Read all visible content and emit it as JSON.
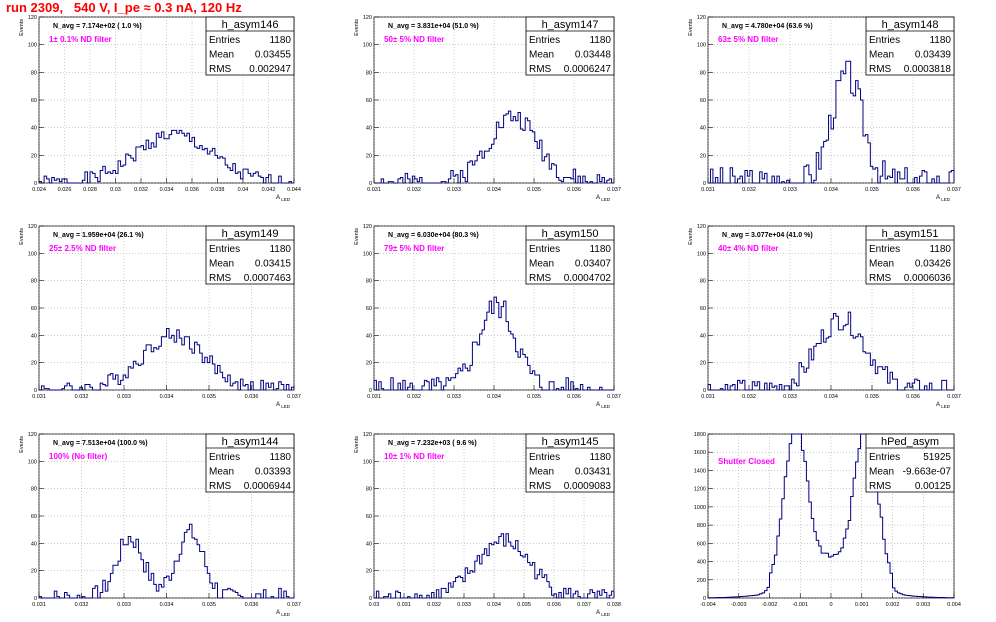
{
  "run_title": "run 2309,   540 V, I_pe ≈ 0.3 nA, 120 Hz",
  "colors": {
    "hist_line": "#000080",
    "annot": "#ff00ff",
    "title": "#ff0000",
    "grid": "#999999"
  },
  "chart_data": [
    {
      "type": "bar",
      "name": "h_asym146",
      "stats": [
        [
          "Entries",
          "1180"
        ],
        [
          "Mean",
          "0.03455"
        ],
        [
          "RMS",
          "0.002947"
        ]
      ],
      "navg": "N_avg = 7.174e+02 ( 1.0 %)",
      "label": "1± 0.1% ND filter",
      "ylabel": "Events",
      "xlabel": "A_LED",
      "xlim": [
        0.024,
        0.044
      ],
      "ylim": [
        0,
        120
      ],
      "xticks": [
        0.024,
        0.026,
        0.028,
        0.03,
        0.032,
        0.034,
        0.036,
        0.038,
        0.04,
        0.042,
        0.044
      ],
      "yticks": [
        0,
        20,
        40,
        60,
        80,
        100,
        120
      ],
      "mean": 0.03455,
      "sigma": 0.00295,
      "peak": 35,
      "seed": 1
    },
    {
      "type": "bar",
      "name": "h_asym147",
      "stats": [
        [
          "Entries",
          "1180"
        ],
        [
          "Mean",
          "0.03448"
        ],
        [
          "RMS",
          "0.0006247"
        ]
      ],
      "navg": "N_avg = 3.831e+04 (51.0 %)",
      "label": "50± 5% ND filter",
      "ylabel": "Events",
      "xlabel": "A_LED",
      "xlim": [
        0.031,
        0.037
      ],
      "ylim": [
        0,
        120
      ],
      "xticks": [
        0.031,
        0.032,
        0.033,
        0.034,
        0.035,
        0.036,
        0.037
      ],
      "yticks": [
        0,
        20,
        40,
        60,
        80,
        100,
        120
      ],
      "mean": 0.03448,
      "sigma": 0.000625,
      "peak": 48,
      "seed": 2
    },
    {
      "type": "bar",
      "name": "h_asym148",
      "stats": [
        [
          "Entries",
          "1180"
        ],
        [
          "Mean",
          "0.03439"
        ],
        [
          "RMS",
          "0.0003818"
        ]
      ],
      "navg": "N_avg = 4.780e+04 (63.6 %)",
      "label": "63± 5% ND filter",
      "ylabel": "Events",
      "xlabel": "A_LED",
      "xlim": [
        0.031,
        0.037
      ],
      "ylim": [
        0,
        120
      ],
      "xticks": [
        0.031,
        0.032,
        0.033,
        0.034,
        0.035,
        0.036,
        0.037
      ],
      "yticks": [
        0,
        20,
        40,
        60,
        80,
        100,
        120
      ],
      "mean": 0.03439,
      "sigma": 0.00038,
      "peak": 78,
      "seed": 3
    },
    {
      "type": "bar",
      "name": "h_asym149",
      "stats": [
        [
          "Entries",
          "1180"
        ],
        [
          "Mean",
          "0.03415"
        ],
        [
          "RMS",
          "0.0007463"
        ]
      ],
      "navg": "N_avg = 1.959e+04 (26.1 %)",
      "label": "25± 2.5% ND filter",
      "ylabel": "Events",
      "xlabel": "A_LED",
      "xlim": [
        0.031,
        0.037
      ],
      "ylim": [
        0,
        120
      ],
      "xticks": [
        0.031,
        0.032,
        0.033,
        0.034,
        0.035,
        0.036,
        0.037
      ],
      "yticks": [
        0,
        20,
        40,
        60,
        80,
        100,
        120
      ],
      "mean": 0.03415,
      "sigma": 0.00075,
      "peak": 40,
      "seed": 4
    },
    {
      "type": "bar",
      "name": "h_asym150",
      "stats": [
        [
          "Entries",
          "1180"
        ],
        [
          "Mean",
          "0.03407"
        ],
        [
          "RMS",
          "0.0004702"
        ]
      ],
      "navg": "N_avg = 6.030e+04 (80.3 %)",
      "label": "79± 5% ND filter",
      "ylabel": "Events",
      "xlabel": "A_LED",
      "xlim": [
        0.031,
        0.037
      ],
      "ylim": [
        0,
        120
      ],
      "xticks": [
        0.031,
        0.032,
        0.033,
        0.034,
        0.035,
        0.036,
        0.037
      ],
      "yticks": [
        0,
        20,
        40,
        60,
        80,
        100,
        120
      ],
      "mean": 0.03407,
      "sigma": 0.00047,
      "peak": 62,
      "seed": 5
    },
    {
      "type": "bar",
      "name": "h_asym151",
      "stats": [
        [
          "Entries",
          "1180"
        ],
        [
          "Mean",
          "0.03426"
        ],
        [
          "RMS",
          "0.0006036"
        ]
      ],
      "navg": "N_avg = 3.077e+04 (41.0 %)",
      "label": "40± 4% ND filter",
      "ylabel": "Events",
      "xlabel": "A_LED",
      "xlim": [
        0.031,
        0.037
      ],
      "ylim": [
        0,
        120
      ],
      "xticks": [
        0.031,
        0.032,
        0.033,
        0.034,
        0.035,
        0.036,
        0.037
      ],
      "yticks": [
        0,
        20,
        40,
        60,
        80,
        100,
        120
      ],
      "mean": 0.03426,
      "sigma": 0.0006,
      "peak": 52,
      "seed": 6
    },
    {
      "type": "bar",
      "name": "h_asym144",
      "stats": [
        [
          "Entries",
          "1180"
        ],
        [
          "Mean",
          "0.03393"
        ],
        [
          "RMS",
          "0.0006944"
        ]
      ],
      "navg": "N_avg = 7.513e+04 (100.0 %)",
      "label": "100% (No filter)",
      "ylabel": "Events",
      "xlabel": "A_LED",
      "xlim": [
        0.031,
        0.037
      ],
      "ylim": [
        0,
        120
      ],
      "xticks": [
        0.031,
        0.032,
        0.033,
        0.034,
        0.035,
        0.036,
        0.037
      ],
      "yticks": [
        0,
        20,
        40,
        60,
        80,
        100,
        120
      ],
      "bimodal": [
        [
          0.03315,
          0.00032,
          44
        ],
        [
          0.03455,
          0.00032,
          48
        ]
      ],
      "seed": 7
    },
    {
      "type": "bar",
      "name": "h_asym145",
      "stats": [
        [
          "Entries",
          "1180"
        ],
        [
          "Mean",
          "0.03431"
        ],
        [
          "RMS",
          "0.0009083"
        ]
      ],
      "navg": "N_avg = 7.232e+03 ( 9.6 %)",
      "label": "10± 1% ND filter",
      "ylabel": "Events",
      "xlabel": "A_LED",
      "xlim": [
        0.03,
        0.038
      ],
      "ylim": [
        0,
        120
      ],
      "xticks": [
        0.03,
        0.031,
        0.032,
        0.033,
        0.034,
        0.035,
        0.036,
        0.037,
        0.038
      ],
      "yticks": [
        0,
        20,
        40,
        60,
        80,
        100,
        120
      ],
      "mean": 0.03431,
      "sigma": 0.0009,
      "peak": 42,
      "seed": 8
    },
    {
      "type": "bar",
      "name": "hPed_asym",
      "stats": [
        [
          "Entries",
          "51925"
        ],
        [
          "Mean",
          "-9.663e-07"
        ],
        [
          "RMS",
          "0.00125"
        ]
      ],
      "navg": "",
      "label": "Shutter Closed",
      "ylabel": "",
      "xlabel": "",
      "xlim": [
        -0.004,
        0.004
      ],
      "ylim": [
        0,
        1800
      ],
      "xticks": [
        -0.004,
        -0.003,
        -0.002,
        -0.001,
        0,
        0.001,
        0.002,
        0.003,
        0.004
      ],
      "yticks": [
        0,
        200,
        400,
        600,
        800,
        1000,
        1200,
        1400,
        1600,
        1800
      ],
      "ped": true,
      "seed": 9
    }
  ]
}
